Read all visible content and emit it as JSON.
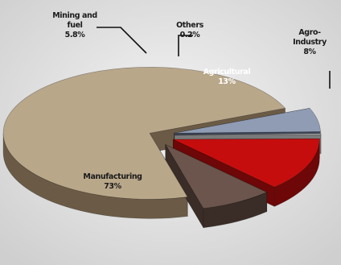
{
  "chart_data": {
    "type": "pie",
    "title": "",
    "style": "3d-exploded",
    "slices": [
      {
        "name": "Manufacturing",
        "value": 73,
        "label_lines": [
          "Manufacturing",
          "73%"
        ],
        "top_color": "#b9a78a",
        "side_color": "#6b5b46"
      },
      {
        "name": "Mining and fuel",
        "value": 5.8,
        "label_lines": [
          "Mining and",
          "fuel",
          "5.8%"
        ],
        "top_color": "#8f9cb4",
        "side_color": "#3f4757"
      },
      {
        "name": "Others",
        "value": 0.2,
        "label_lines": [
          "Others",
          "0.2%"
        ],
        "top_color": "#e8e8e8",
        "side_color": "#7a7a7a"
      },
      {
        "name": "Agricultural",
        "value": 13,
        "label_lines": [
          "Agricultural",
          "13%"
        ],
        "top_color": "#c60d0d",
        "side_color": "#6e0707"
      },
      {
        "name": "Agro-Industry",
        "value": 8,
        "label_lines": [
          "Agro-",
          "Industry",
          "8%"
        ],
        "top_color": "#6b554c",
        "side_color": "#3a2c26"
      }
    ]
  }
}
